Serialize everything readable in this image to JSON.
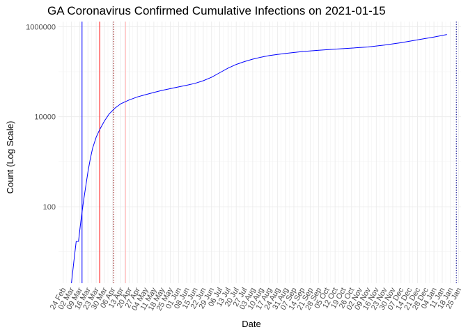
{
  "chart_data": {
    "type": "line",
    "title": "GA Coronavirus Confirmed Cumulative Infections on 2021-01-15",
    "xlabel": "Date",
    "ylabel": "Count (Log Scale)",
    "y_scale": "log10",
    "ylim": [
      2,
      1300000
    ],
    "xlim": [
      "2020-02-20",
      "2021-01-27"
    ],
    "y_ticks": [
      {
        "value": 100,
        "label": "100"
      },
      {
        "value": 10000,
        "label": "10000"
      },
      {
        "value": 1000000,
        "label": "1000000"
      }
    ],
    "x_ticks": [
      {
        "date": "2020-02-24",
        "label": "24 Feb"
      },
      {
        "date": "2020-03-02",
        "label": "02 Mar"
      },
      {
        "date": "2020-03-09",
        "label": "09 Mar"
      },
      {
        "date": "2020-03-16",
        "label": "16 Mar"
      },
      {
        "date": "2020-03-23",
        "label": "23 Mar"
      },
      {
        "date": "2020-03-30",
        "label": "30 Mar"
      },
      {
        "date": "2020-04-06",
        "label": "06 Apr"
      },
      {
        "date": "2020-04-13",
        "label": "13 Apr"
      },
      {
        "date": "2020-04-20",
        "label": "20 Apr"
      },
      {
        "date": "2020-04-27",
        "label": "27 Apr"
      },
      {
        "date": "2020-05-04",
        "label": "04 May"
      },
      {
        "date": "2020-05-11",
        "label": "11 May"
      },
      {
        "date": "2020-05-18",
        "label": "18 May"
      },
      {
        "date": "2020-05-25",
        "label": "25 May"
      },
      {
        "date": "2020-06-01",
        "label": "01 Jun"
      },
      {
        "date": "2020-06-08",
        "label": "08 Jun"
      },
      {
        "date": "2020-06-15",
        "label": "15 Jun"
      },
      {
        "date": "2020-06-22",
        "label": "22 Jun"
      },
      {
        "date": "2020-06-29",
        "label": "29 Jun"
      },
      {
        "date": "2020-07-06",
        "label": "06 Jul"
      },
      {
        "date": "2020-07-13",
        "label": "13 Jul"
      },
      {
        "date": "2020-07-20",
        "label": "20 Jul"
      },
      {
        "date": "2020-07-27",
        "label": "27 Jul"
      },
      {
        "date": "2020-08-03",
        "label": "03 Aug"
      },
      {
        "date": "2020-08-10",
        "label": "10 Aug"
      },
      {
        "date": "2020-08-17",
        "label": "17 Aug"
      },
      {
        "date": "2020-08-24",
        "label": "24 Aug"
      },
      {
        "date": "2020-08-31",
        "label": "31 Aug"
      },
      {
        "date": "2020-09-07",
        "label": "07 Sep"
      },
      {
        "date": "2020-09-14",
        "label": "14 Sep"
      },
      {
        "date": "2020-09-21",
        "label": "21 Sep"
      },
      {
        "date": "2020-09-28",
        "label": "28 Sep"
      },
      {
        "date": "2020-10-05",
        "label": "05 Oct"
      },
      {
        "date": "2020-10-12",
        "label": "12 Oct"
      },
      {
        "date": "2020-10-19",
        "label": "19 Oct"
      },
      {
        "date": "2020-10-26",
        "label": "26 Oct"
      },
      {
        "date": "2020-11-02",
        "label": "02 Nov"
      },
      {
        "date": "2020-11-09",
        "label": "09 Nov"
      },
      {
        "date": "2020-11-16",
        "label": "16 Nov"
      },
      {
        "date": "2020-11-23",
        "label": "23 Nov"
      },
      {
        "date": "2020-11-30",
        "label": "30 Nov"
      },
      {
        "date": "2020-12-07",
        "label": "07 Dec"
      },
      {
        "date": "2020-12-14",
        "label": "14 Dec"
      },
      {
        "date": "2020-12-21",
        "label": "21 Dec"
      },
      {
        "date": "2020-12-28",
        "label": "28 Dec"
      },
      {
        "date": "2021-01-04",
        "label": "04 Jan"
      },
      {
        "date": "2021-01-11",
        "label": "11 Jan"
      },
      {
        "date": "2021-01-18",
        "label": "18 Jan"
      },
      {
        "date": "2021-01-25",
        "label": "25 Jan"
      }
    ],
    "series": [
      {
        "color": "#0000ff",
        "points": [
          {
            "x": "2020-03-02",
            "y": 2
          },
          {
            "x": "2020-03-04",
            "y": 6
          },
          {
            "x": "2020-03-06",
            "y": 17
          },
          {
            "x": "2020-03-08",
            "y": 17
          },
          {
            "x": "2020-03-10",
            "y": 48
          },
          {
            "x": "2020-03-12",
            "y": 120
          },
          {
            "x": "2020-03-14",
            "y": 270
          },
          {
            "x": "2020-03-16",
            "y": 600
          },
          {
            "x": "2020-03-18",
            "y": 1150
          },
          {
            "x": "2020-03-20",
            "y": 2000
          },
          {
            "x": "2020-03-23",
            "y": 3500
          },
          {
            "x": "2020-03-26",
            "y": 5200
          },
          {
            "x": "2020-03-30",
            "y": 8000
          },
          {
            "x": "2020-04-03",
            "y": 11500
          },
          {
            "x": "2020-04-08",
            "y": 15500
          },
          {
            "x": "2020-04-13",
            "y": 19500
          },
          {
            "x": "2020-04-20",
            "y": 23500
          },
          {
            "x": "2020-04-27",
            "y": 27500
          },
          {
            "x": "2020-05-04",
            "y": 31000
          },
          {
            "x": "2020-05-11",
            "y": 34500
          },
          {
            "x": "2020-05-18",
            "y": 38500
          },
          {
            "x": "2020-05-25",
            "y": 42000
          },
          {
            "x": "2020-06-01",
            "y": 46000
          },
          {
            "x": "2020-06-08",
            "y": 50000
          },
          {
            "x": "2020-06-15",
            "y": 55000
          },
          {
            "x": "2020-06-22",
            "y": 63000
          },
          {
            "x": "2020-06-29",
            "y": 75000
          },
          {
            "x": "2020-07-06",
            "y": 95000
          },
          {
            "x": "2020-07-13",
            "y": 120000
          },
          {
            "x": "2020-07-20",
            "y": 145000
          },
          {
            "x": "2020-07-27",
            "y": 168000
          },
          {
            "x": "2020-08-03",
            "y": 190000
          },
          {
            "x": "2020-08-10",
            "y": 210000
          },
          {
            "x": "2020-08-17",
            "y": 228000
          },
          {
            "x": "2020-08-24",
            "y": 242000
          },
          {
            "x": "2020-08-31",
            "y": 255000
          },
          {
            "x": "2020-09-14",
            "y": 280000
          },
          {
            "x": "2020-09-28",
            "y": 300000
          },
          {
            "x": "2020-10-12",
            "y": 318000
          },
          {
            "x": "2020-10-26",
            "y": 335000
          },
          {
            "x": "2020-11-09",
            "y": 355000
          },
          {
            "x": "2020-11-23",
            "y": 390000
          },
          {
            "x": "2020-12-07",
            "y": 440000
          },
          {
            "x": "2020-12-21",
            "y": 510000
          },
          {
            "x": "2021-01-04",
            "y": 590000
          },
          {
            "x": "2021-01-15",
            "y": 670000
          }
        ]
      }
    ],
    "reference_lines": [
      {
        "x": "2020-03-11",
        "color": "#0000ff",
        "style": "solid"
      },
      {
        "x": "2020-03-26",
        "color": "#ff0000",
        "style": "solid"
      },
      {
        "x": "2020-04-07",
        "color": "#8b0000",
        "style": "dotted"
      },
      {
        "x": "2020-04-17",
        "color": "#ffb3b3",
        "style": "solid"
      },
      {
        "x": "2021-01-23",
        "color": "#00008b",
        "style": "dotted"
      }
    ],
    "grid": true,
    "legend": "none"
  }
}
